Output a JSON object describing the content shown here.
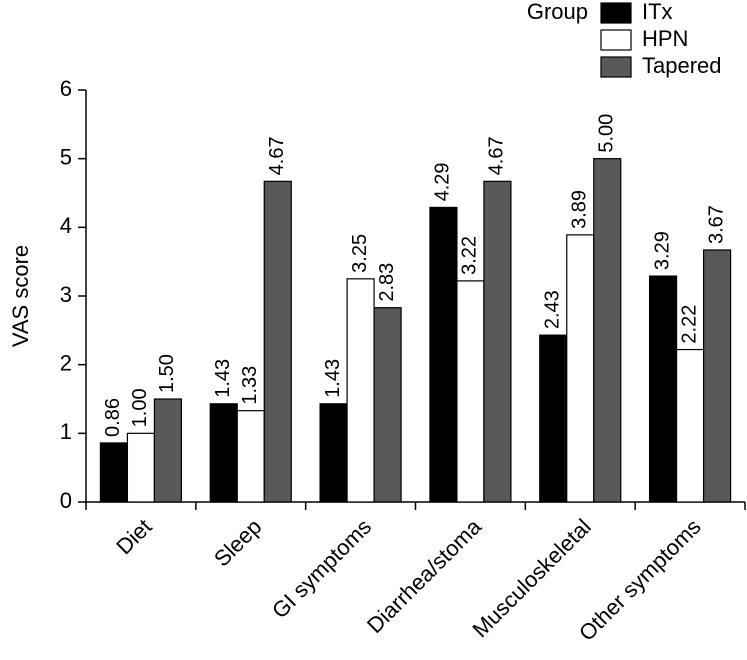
{
  "chart_data": {
    "type": "bar",
    "y_label": "VAS score",
    "legend_title": "Group",
    "categories": [
      "Diet",
      "Sleep",
      "GI symptoms",
      "Diarrhea/stoma",
      "Musculoskeletal",
      "Other symptoms"
    ],
    "series": [
      {
        "name": "ITx",
        "color": "#000000",
        "values": [
          0.86,
          1.43,
          1.43,
          4.29,
          2.43,
          3.29
        ],
        "value_labels": [
          "0.86",
          "1.43",
          "1.43",
          "4.29",
          "2.43",
          "3.29"
        ]
      },
      {
        "name": "HPN",
        "color": "#ffffff",
        "values": [
          1.0,
          1.33,
          3.25,
          3.22,
          3.89,
          2.22
        ],
        "value_labels": [
          "1.00",
          "1.33",
          "3.25",
          "3.22",
          "3.89",
          "2.22"
        ]
      },
      {
        "name": "Tapered",
        "color": "#595959",
        "values": [
          1.5,
          4.67,
          2.83,
          4.67,
          5.0,
          3.67
        ],
        "value_labels": [
          "1.50",
          "4.67",
          "2.83",
          "4.67",
          "5.00",
          "3.67"
        ]
      }
    ],
    "ylim": [
      0,
      6
    ],
    "yticks": [
      0,
      1,
      2,
      3,
      4,
      5,
      6
    ]
  }
}
